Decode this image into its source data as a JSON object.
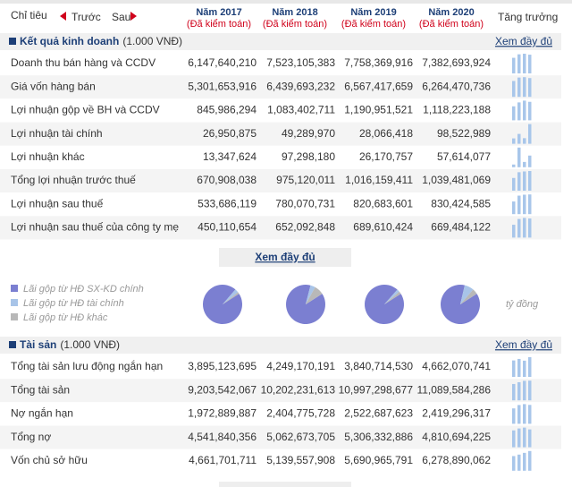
{
  "header": {
    "label": "Chỉ tiêu",
    "prev": "Trước",
    "next": "Sau",
    "years": [
      {
        "year": "Năm 2017",
        "note": "(Đã kiểm toán)"
      },
      {
        "year": "Năm 2018",
        "note": "(Đã kiểm toán)"
      },
      {
        "year": "Năm 2019",
        "note": "(Đã kiểm toán)"
      },
      {
        "year": "Năm 2020",
        "note": "(Đã kiểm toán)"
      }
    ],
    "growth": "Tăng trưởng"
  },
  "sections": [
    {
      "title": "Kết quả kinh doanh",
      "unit": "(1.000 VNĐ)",
      "more": "Xem đầy đủ",
      "rows": [
        {
          "label": "Doanh thu bán hàng và CCDV",
          "values": [
            "6,147,640,210",
            "7,523,105,383",
            "7,758,369,916",
            "7,382,693,924"
          ]
        },
        {
          "label": "Giá vốn hàng bán",
          "values": [
            "5,301,653,916",
            "6,439,693,232",
            "6,567,417,659",
            "6,264,470,736"
          ]
        },
        {
          "label": "Lợi nhuận gộp về BH và CCDV",
          "values": [
            "845,986,294",
            "1,083,402,711",
            "1,190,951,521",
            "1,118,223,188"
          ]
        },
        {
          "label": "Lợi nhuận tài chính",
          "values": [
            "26,950,875",
            "49,289,970",
            "28,066,418",
            "98,522,989"
          ]
        },
        {
          "label": "Lợi nhuận khác",
          "values": [
            "13,347,624",
            "97,298,180",
            "26,170,757",
            "57,614,077"
          ]
        },
        {
          "label": "Tổng lợi nhuận trước thuế",
          "values": [
            "670,908,038",
            "975,120,011",
            "1,016,159,411",
            "1,039,481,069"
          ]
        },
        {
          "label": "Lợi nhuận sau thuế",
          "values": [
            "533,686,119",
            "780,070,731",
            "820,683,601",
            "830,424,585"
          ]
        },
        {
          "label": "Lợi nhuận sau thuế của công ty mẹ",
          "values": [
            "450,110,654",
            "652,092,848",
            "689,610,424",
            "669,484,122"
          ]
        }
      ]
    },
    {
      "title": "Tài sản",
      "unit": "(1.000 VNĐ)",
      "more": "Xem đầy đủ",
      "rows": [
        {
          "label": "Tổng tài sản lưu động ngắn hạn",
          "values": [
            "3,895,123,695",
            "4,249,170,191",
            "3,840,714,530",
            "4,662,070,741"
          ]
        },
        {
          "label": "Tổng tài sản",
          "values": [
            "9,203,542,067",
            "10,202,231,613",
            "10,997,298,677",
            "11,089,584,286"
          ]
        },
        {
          "label": "Nợ ngắn hạn",
          "values": [
            "1,972,889,887",
            "2,404,775,728",
            "2,522,687,623",
            "2,419,296,317"
          ]
        },
        {
          "label": "Tổng nợ",
          "values": [
            "4,541,840,356",
            "5,062,673,705",
            "5,306,332,886",
            "4,810,694,225"
          ]
        },
        {
          "label": "Vốn chủ sở hữu",
          "values": [
            "4,661,701,711",
            "5,139,557,908",
            "5,690,965,791",
            "6,278,890,062"
          ]
        }
      ]
    }
  ],
  "more_button": "Xem đầy đủ",
  "pies": {
    "legend": [
      "Lãi gộp từ HĐ SX-KD chính",
      "Lãi gộp từ HĐ tài chính",
      "Lãi gộp từ HĐ khác"
    ],
    "unit": "tỷ đồng"
  }
}
